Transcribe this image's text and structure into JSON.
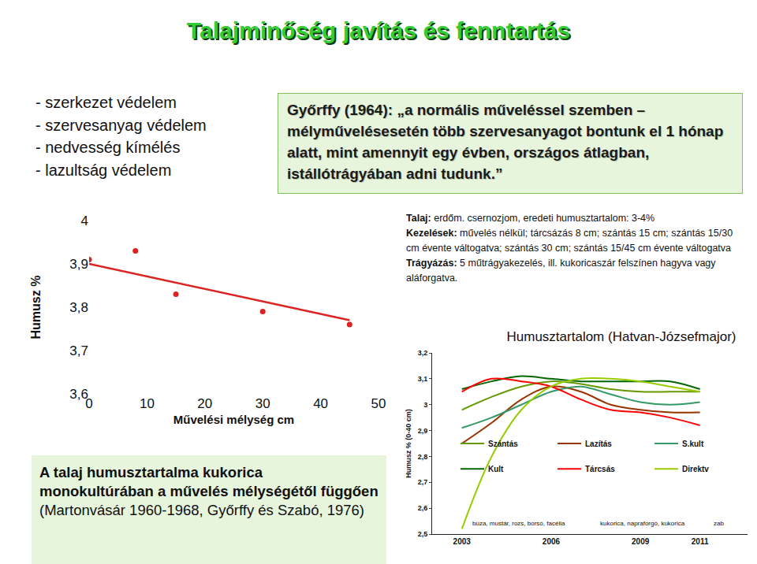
{
  "slide": {
    "title": "Talajminőség javítás és fenntartás",
    "bullets": [
      "- szerkezet védelem",
      "- szervesanyag védelem",
      "- nedvesség kímélés",
      "- lazultság védelem"
    ],
    "quote": {
      "source": "Győrffy (1964):",
      "text": "„a normális műveléssel szemben – mélyművelésesetén több szervesanyagot bontunk el 1 hónap alatt, mint amennyit egy évben, országos átlagban, istállótrágyában adni tudunk.”"
    },
    "info": [
      {
        "label": "Talaj:",
        "text": "erdőm. csernozjom, eredeti humusztartalom: 3-4%"
      },
      {
        "label": "Kezelések:",
        "text": "művelés nélkül; tárcsázás 8 cm; szántás 15 cm; szántás 15/30 cm évente váltogatva; szántás 30 cm; szántás 15/45 cm évente váltogatva"
      },
      {
        "label": "Trágyázás:",
        "text": "5 műtrágyakezelés, ill. kukoricaszár felszínen hagyva vagy aláforgatva."
      }
    ],
    "caption": {
      "bold": "A talaj humusztartalma kukorica monokultúrában a művelés mélységétől függően",
      "text": "(Martonvásár 1960-1968, Győrffy és Szabó, 1976)"
    }
  },
  "chart_data": [
    {
      "type": "scatter",
      "xlabel": "Művelési mélység cm",
      "ylabel": "Humusz %",
      "xlim": [
        0,
        50
      ],
      "xticks": [
        0,
        10,
        20,
        30,
        40,
        50
      ],
      "ylim": [
        3.6,
        4
      ],
      "yticks": [
        {
          "value": 3.6,
          "label": "3,6"
        },
        {
          "value": 3.7,
          "label": "3,7"
        },
        {
          "value": 3.8,
          "label": "3,8"
        },
        {
          "value": 3.9,
          "label": "3,9"
        },
        4
      ],
      "grid": false,
      "series": [
        {
          "type": "scatter",
          "marker": "circle",
          "color": "#dd2222",
          "x": [
            0,
            8,
            15,
            30,
            45
          ],
          "values": [
            3.91,
            3.93,
            3.83,
            3.79,
            3.76
          ]
        },
        {
          "type": "line",
          "color": "#dd2222",
          "x": [
            0,
            45
          ],
          "values": [
            3.9,
            3.77
          ]
        }
      ]
    },
    {
      "type": "line",
      "title": "Humusztartalom (Hatvan-Józsefmajor)",
      "ylabel": "Humusz % (0-40 cm)",
      "x": [
        2003,
        2004,
        2005,
        2006,
        2007,
        2008,
        2009,
        2010,
        2011
      ],
      "xlim": [
        2002,
        2012.6
      ],
      "xticks": [
        2003,
        2006,
        2009,
        2011
      ],
      "ylim": [
        2.5,
        3.2
      ],
      "yticks": [
        {
          "value": 2.5,
          "label": "2,5"
        },
        {
          "value": 2.6,
          "label": "2,6"
        },
        {
          "value": 2.7,
          "label": "2,7"
        },
        {
          "value": 2.8,
          "label": "2,8"
        },
        {
          "value": 2.9,
          "label": "2,9"
        },
        3,
        {
          "value": 3.1,
          "label": "3,1"
        },
        {
          "value": 3.2,
          "label": "3,2"
        }
      ],
      "grid": false,
      "annotations": [
        "búza, mustár, rozs, borsó, facélia",
        "kukorica, napraforgó, kukorica",
        "zab"
      ],
      "series": [
        {
          "name": "Szántás",
          "color": "#669900",
          "values": [
            2.98,
            3.03,
            3.07,
            3.09,
            3.08,
            3.06,
            3.05,
            3.05,
            3.05
          ]
        },
        {
          "name": "Lazítás",
          "color": "#993300",
          "values": [
            2.85,
            2.93,
            3.02,
            3.07,
            3.05,
            3.0,
            2.98,
            2.97,
            2.97
          ]
        },
        {
          "name": "S.kult",
          "color": "#339966",
          "values": [
            2.91,
            2.95,
            3.0,
            3.05,
            3.07,
            3.04,
            3.01,
            3.0,
            3.01
          ]
        },
        {
          "name": "Kult",
          "color": "#006600",
          "values": [
            3.06,
            3.09,
            3.11,
            3.1,
            3.09,
            3.09,
            3.09,
            3.09,
            3.06
          ]
        },
        {
          "name": "Tárcsás",
          "color": "#ff0000",
          "values": [
            3.05,
            3.1,
            3.09,
            3.07,
            3.02,
            2.98,
            2.97,
            2.95,
            2.92
          ]
        },
        {
          "name": "Direktv",
          "color": "#99cc00",
          "values": [
            2.52,
            2.8,
            2.98,
            3.07,
            3.1,
            3.1,
            3.09,
            3.07,
            3.05
          ]
        }
      ]
    }
  ]
}
